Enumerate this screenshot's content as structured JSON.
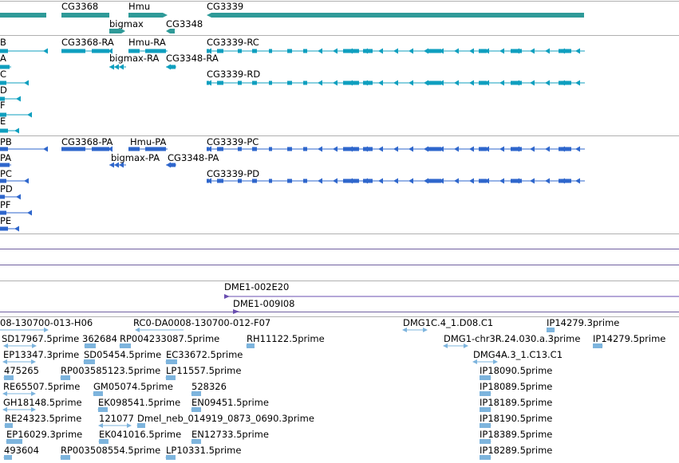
{
  "colors": {
    "gene": "#2e9a98",
    "transcript_ra": "#0f9fbf",
    "transcript_pa": "#2e66cc",
    "est": "#7db4dd",
    "dme": "#6a4fb0",
    "separator": "#b0b0b0",
    "separator_purple": "#7060a0"
  },
  "gene_track": {
    "labels": [
      "CG3368",
      "Hmu",
      "CG3339",
      "bigmax",
      "CG3348"
    ]
  },
  "transcripts_r": {
    "labels": [
      "B",
      "CG3368-RA",
      "Hmu-RA",
      "CG3339-RC",
      "A",
      "bigmax-RA",
      "CG3348-RA",
      "C",
      "CG3339-RD",
      "D",
      "F",
      "E"
    ]
  },
  "transcripts_p": {
    "labels": [
      "PB",
      "CG3368-PA",
      "Hmu-PA",
      "CG3339-PC",
      "PA",
      "bigmax-PA",
      "CG3348-PA",
      "PC",
      "CG3339-PD",
      "PD",
      "PF",
      "PE"
    ]
  },
  "dme_track": {
    "labels": [
      "DME1-002E20",
      "DME1-009I08"
    ]
  },
  "est_track": {
    "labels": [
      "08-130700-013-H06",
      "RC0-DA0008-130700-012-F07",
      "DMG1C.4_1.D08.C1",
      "IP14279.3prime",
      "SD17967.5prime",
      "362684",
      "RP004233087.5prime",
      "RH11122.5prime",
      "DMG1-chr3R.24.030.a.3prime",
      "IP14279.5prime",
      "EP13347.3prime",
      "SD05454.5prime",
      "EC33672.5prime",
      "DMG4A.3_1.C13.C1",
      "475265",
      "RP003585123.5prime",
      "LP11557.5prime",
      "IP18090.5prime",
      "RE65507.5prime",
      "GM05074.5prime",
      "528326",
      "IP18089.5prime",
      "GH18148.5prime",
      "EK098541.5prime",
      "EN09451.5prime",
      "IP18189.5prime",
      "RE24323.5prime",
      "121077",
      "Dmel_neb_014919_0873_0690.3prime",
      "IP18190.5prime",
      "EP16029.3prime",
      "EK041016.5prime",
      "EN12733.5prime",
      "IP18389.5prime",
      "493604",
      "RP003508554.5prime",
      "LP10331.5prime",
      "IP18289.5prime"
    ]
  }
}
